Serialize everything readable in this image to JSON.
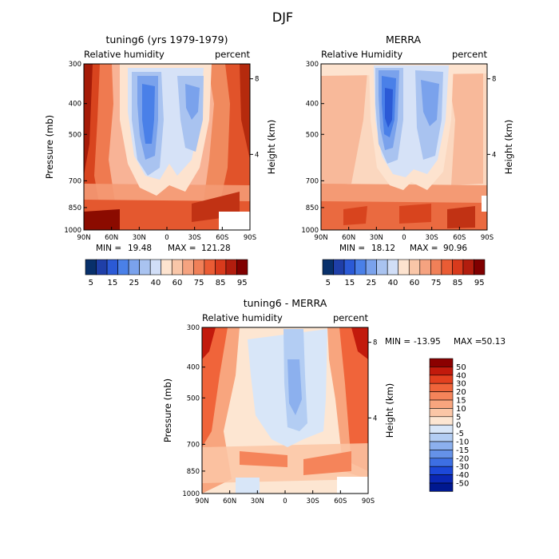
{
  "figure_title": "DJF",
  "chart_data": [
    {
      "type": "heatmap",
      "title": "tuning6 (yrs 1979-1979)",
      "left_subtitle": "Relative humidity",
      "right_subtitle": "percent",
      "ylabel": "Pressure (mb)",
      "ylabel_right": "Height (km)",
      "xticks": [
        "90N",
        "60N",
        "30N",
        "0",
        "30S",
        "60S",
        "90S"
      ],
      "yticks": [
        "300",
        "400",
        "500",
        "700",
        "850",
        "1000"
      ],
      "yticks_right": [
        "8",
        "4"
      ],
      "ylim": [
        1000,
        300
      ],
      "min": "19.48",
      "max": "121.28",
      "min_label": "MIN =",
      "max_label": "MAX ="
    },
    {
      "type": "heatmap",
      "title": "MERRA",
      "left_subtitle": "Relative Humidity",
      "right_subtitle": "percent",
      "ylabel_right": "Height (km)",
      "xticks": [
        "90N",
        "60N",
        "30N",
        "0",
        "30S",
        "60S",
        "90S"
      ],
      "yticks": [
        "300",
        "400",
        "500",
        "700",
        "850",
        "1000"
      ],
      "yticks_right": [
        "8",
        "4"
      ],
      "ylim": [
        1000,
        300
      ],
      "min": "18.12",
      "max": "90.96",
      "min_label": "MIN =",
      "max_label": "MAX ="
    },
    {
      "type": "heatmap",
      "title": "tuning6 - MERRA",
      "left_subtitle": "Relative humidity",
      "right_subtitle": "percent",
      "ylabel": "Pressure (mb)",
      "ylabel_right": "Height (km)",
      "xticks": [
        "90N",
        "60N",
        "30N",
        "0",
        "30S",
        "60S",
        "90S"
      ],
      "yticks": [
        "300",
        "400",
        "500",
        "700",
        "850",
        "1000"
      ],
      "yticks_right": [
        "8",
        "4"
      ],
      "ylim": [
        1000,
        300
      ],
      "min": "-13.95",
      "max": "50.13",
      "min_label": "MIN =",
      "max_label": "MAX ="
    }
  ],
  "colorbar_main": {
    "labels": [
      "5",
      "15",
      "25",
      "40",
      "60",
      "75",
      "85",
      "95"
    ],
    "colors": [
      "#08306b",
      "#1f3fa8",
      "#2b5ad6",
      "#4a80e8",
      "#7aa2ec",
      "#a9c3f0",
      "#d1def7",
      "#fde3cf",
      "#f9c6a8",
      "#f5a380",
      "#f08058",
      "#ea5c34",
      "#d83a1c",
      "#b21d0e",
      "#800000"
    ]
  },
  "colorbar_diff": {
    "labels": [
      "50",
      "40",
      "30",
      "20",
      "15",
      "10",
      "5",
      "0",
      "-5",
      "-10",
      "-15",
      "-20",
      "-30",
      "-40",
      "-50"
    ],
    "colors": [
      "#8b0000",
      "#c21a0c",
      "#e3401f",
      "#f0643a",
      "#f5845a",
      "#f8a57e",
      "#fbc6a6",
      "#fde6d2",
      "#d8e6f8",
      "#b3cdf3",
      "#8cb0ee",
      "#6592e8",
      "#3d6fe3",
      "#1c48d8",
      "#0a27b4",
      "#001890"
    ]
  }
}
